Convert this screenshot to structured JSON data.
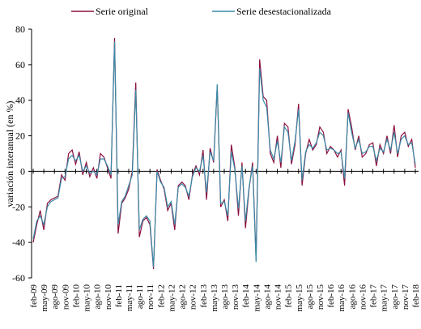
{
  "chart_data": {
    "type": "line",
    "y_label": "variación interanual (en %)",
    "categories": [
      "feb-09",
      null,
      null,
      "may-09",
      null,
      null,
      "ago-09",
      null,
      null,
      "nov-09",
      null,
      null,
      "feb-10",
      null,
      null,
      "may-10",
      null,
      null,
      "ago-10",
      null,
      null,
      "nov-10",
      null,
      null,
      "feb-11",
      null,
      null,
      "may-11",
      null,
      null,
      "ago-11",
      null,
      null,
      "nov-11",
      null,
      null,
      "feb-12",
      null,
      null,
      "may-12",
      null,
      null,
      "ago-12",
      null,
      null,
      "nov-12",
      null,
      null,
      "feb-13",
      null,
      null,
      "may-13",
      null,
      null,
      "ago-13",
      null,
      null,
      "nov-13",
      null,
      null,
      "feb-14",
      null,
      null,
      "may-14",
      null,
      null,
      "ago-14",
      null,
      null,
      "nov-14",
      null,
      null,
      "feb-15",
      null,
      null,
      "may-15",
      null,
      null,
      "ago-15",
      null,
      null,
      "nov-15",
      null,
      null,
      "feb-16",
      null,
      null,
      "may-16",
      null,
      null,
      "ago-16",
      null,
      null,
      "nov-16",
      null,
      null,
      "feb-17",
      null,
      null,
      "may-17",
      null,
      null,
      "ago-17",
      null,
      null,
      "nov-17",
      null,
      null,
      "feb-18"
    ],
    "series": [
      {
        "name": "Serie original",
        "color": "#8c1040",
        "values": [
          -40,
          -30,
          -22,
          -33,
          -18,
          -16,
          -15,
          -14,
          -2,
          -5,
          10,
          12,
          4,
          11,
          -2,
          5,
          -3,
          2,
          -4,
          10,
          8,
          2,
          -4,
          75,
          -35,
          -18,
          -15,
          -10,
          0,
          50,
          -37,
          -28,
          -26,
          -30,
          -55,
          1,
          -5,
          -10,
          -22,
          -18,
          -33,
          -8,
          -6,
          -8,
          -16,
          -2,
          3,
          -2,
          12,
          -16,
          13,
          5,
          48,
          -20,
          -16,
          -28,
          15,
          2,
          -25,
          5,
          -32,
          -10,
          5,
          -50,
          63,
          42,
          40,
          10,
          5,
          20,
          2,
          27,
          25,
          4,
          15,
          38,
          -8,
          10,
          18,
          12,
          15,
          25,
          22,
          10,
          14,
          12,
          8,
          12,
          -8,
          35,
          25,
          12,
          20,
          8,
          10,
          15,
          16,
          3,
          15,
          10,
          20,
          10,
          26,
          8,
          20,
          22,
          14,
          18,
          2
        ]
      },
      {
        "name": "Serie desestacionalizada",
        "color": "#3a8ca8",
        "values": [
          -38,
          -28,
          -25,
          -30,
          -20,
          -17,
          -16,
          -15,
          -4,
          -3,
          7,
          9,
          6,
          9,
          0,
          3,
          -1,
          0,
          -2,
          7,
          7,
          3,
          -2,
          73,
          -30,
          -17,
          -14,
          -8,
          -2,
          46,
          -33,
          -27,
          -25,
          -28,
          -54,
          0,
          -6,
          -9,
          -20,
          -17,
          -30,
          -9,
          -7,
          -9,
          -14,
          -3,
          2,
          0,
          9,
          -12,
          11,
          6,
          49,
          -18,
          -17,
          -25,
          11,
          1,
          -21,
          3,
          -28,
          -9,
          3,
          -51,
          58,
          40,
          36,
          12,
          7,
          17,
          5,
          25,
          22,
          6,
          17,
          35,
          -5,
          11,
          15,
          13,
          16,
          22,
          20,
          12,
          13,
          12,
          10,
          11,
          -4,
          33,
          22,
          13,
          18,
          10,
          11,
          14,
          14,
          6,
          13,
          11,
          18,
          12,
          22,
          10,
          18,
          20,
          15,
          16,
          4
        ]
      }
    ],
    "ylim": [
      -60,
      80
    ],
    "yticks": [
      -60,
      -40,
      -20,
      0,
      20,
      40,
      60,
      80
    ],
    "legend": "top"
  }
}
